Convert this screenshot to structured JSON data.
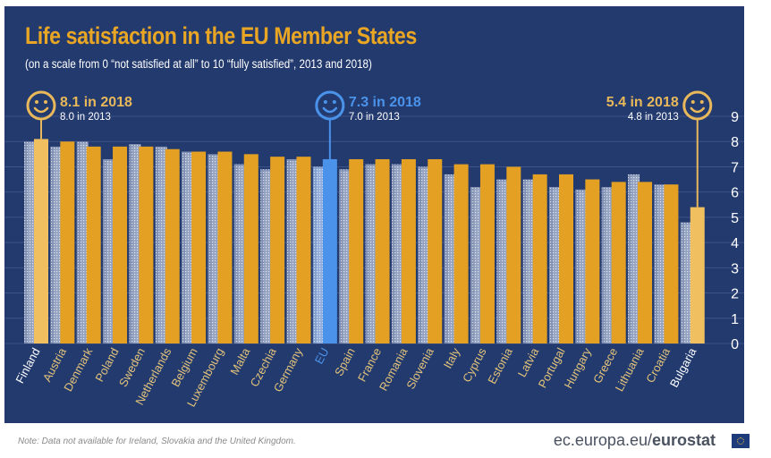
{
  "title": "Life satisfaction in the EU Member States",
  "subtitle": "(on a scale from 0 “not satisfied at all” to 10 “fully satisfied”, 2013 and 2018)",
  "footer": {
    "note": "Note: Data not available for Ireland, Slovakia and the United Kingdom.",
    "brand_prefix": "ec.europa.eu/",
    "brand_bold": "eurostat",
    "flag_icon": "eu-flag-icon"
  },
  "colors": {
    "background": "#233a6e",
    "bar_2018": "#e3a022",
    "bar_2018_highlight": "#f0c060",
    "bar_2013": "#8090b4",
    "bar_2013_inner": "#a3b0cc",
    "eu_2018": "#4b93ea",
    "eu_2013": "#7f9ccc",
    "title": "#e8a624",
    "label_default": "#e3c37a",
    "label_highlight": "#ffffff",
    "label_eu": "#4b93ea"
  },
  "callouts": [
    {
      "country": "Finland",
      "icon": "smiley-icon",
      "line1": "8.1 in 2018",
      "line2": "8.0 in 2013",
      "color": "#e8b85a",
      "side": "right"
    },
    {
      "country": "EU",
      "icon": "smiley-icon",
      "line1": "7.3 in 2018",
      "line2": "7.0 in 2013",
      "color": "#4b93ea",
      "side": "right"
    },
    {
      "country": "Bulgaria",
      "icon": "smiley-icon",
      "line1": "5.4 in 2018",
      "line2": "4.8 in 2013",
      "color": "#e8b85a",
      "side": "left"
    }
  ],
  "chart_data": {
    "type": "bar",
    "title": "Life satisfaction in the EU Member States",
    "subtitle": "(on a scale from 0 “not satisfied at all” to 10 “fully satisfied”, 2013 and 2018)",
    "xlabel": "",
    "ylabel": "",
    "ylim": [
      0,
      9
    ],
    "yticks": [
      0,
      1,
      2,
      3,
      4,
      5,
      6,
      7,
      8,
      9
    ],
    "y_axis_side": "right",
    "grid": true,
    "categories": [
      "Finland",
      "Austria",
      "Denmark",
      "Poland",
      "Sweden",
      "Netherlands",
      "Belgium",
      "Luxembourg",
      "Malta",
      "Czechia",
      "Germany",
      "EU",
      "Spain",
      "France",
      "Romania",
      "Slovenia",
      "Italy",
      "Cyprus",
      "Estonia",
      "Latvia",
      "Portugal",
      "Hungary",
      "Greece",
      "Lithuania",
      "Croatia",
      "Bulgaria"
    ],
    "highlighted": [
      "Finland",
      "EU",
      "Bulgaria"
    ],
    "series": [
      {
        "name": "2013",
        "values": [
          8.0,
          7.8,
          8.0,
          7.3,
          7.9,
          7.8,
          7.6,
          7.5,
          7.1,
          6.9,
          7.3,
          7.0,
          6.9,
          7.1,
          7.1,
          7.0,
          6.7,
          6.2,
          6.5,
          6.5,
          6.2,
          6.1,
          6.2,
          6.7,
          6.3,
          4.8
        ]
      },
      {
        "name": "2018",
        "values": [
          8.1,
          8.0,
          7.8,
          7.8,
          7.8,
          7.7,
          7.6,
          7.6,
          7.5,
          7.4,
          7.4,
          7.3,
          7.3,
          7.3,
          7.3,
          7.3,
          7.1,
          7.1,
          7.0,
          6.7,
          6.7,
          6.5,
          6.4,
          6.4,
          6.3,
          5.4
        ]
      }
    ]
  }
}
